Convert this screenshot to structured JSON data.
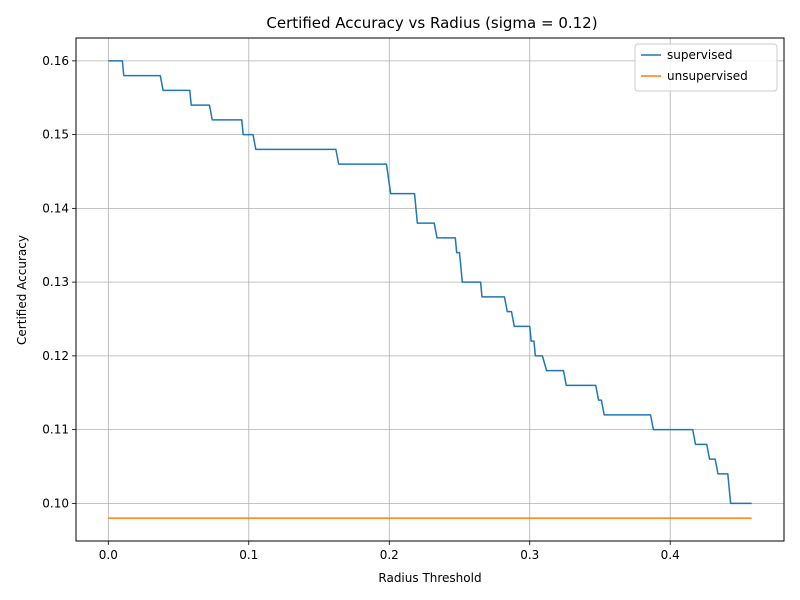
{
  "chart_data": {
    "type": "line",
    "title": "Certified Accuracy vs Radius (sigma = 0.12)",
    "xlabel": "Radius Threshold",
    "ylabel": "Certified Accuracy",
    "xlim": [
      -0.023,
      0.481
    ],
    "ylim": [
      0.0949,
      0.1631
    ],
    "xticks": [
      0.0,
      0.1,
      0.2,
      0.3,
      0.4
    ],
    "xtick_labels": [
      "0.0",
      "0.1",
      "0.2",
      "0.3",
      "0.4"
    ],
    "yticks": [
      0.1,
      0.11,
      0.12,
      0.13,
      0.14,
      0.15,
      0.16
    ],
    "ytick_labels": [
      "0.10",
      "0.11",
      "0.12",
      "0.13",
      "0.14",
      "0.15",
      "0.16"
    ],
    "grid": true,
    "legend_position": "top-right",
    "series": [
      {
        "name": "supervised",
        "color": "#1f77b4",
        "x": [
          0.0,
          0.01,
          0.011,
          0.037,
          0.039,
          0.058,
          0.059,
          0.072,
          0.074,
          0.095,
          0.096,
          0.103,
          0.105,
          0.162,
          0.164,
          0.198,
          0.201,
          0.218,
          0.22,
          0.232,
          0.234,
          0.247,
          0.248,
          0.25,
          0.252,
          0.265,
          0.266,
          0.282,
          0.284,
          0.287,
          0.289,
          0.3,
          0.301,
          0.303,
          0.304,
          0.309,
          0.312,
          0.324,
          0.326,
          0.347,
          0.349,
          0.351,
          0.353,
          0.386,
          0.388,
          0.416,
          0.418,
          0.426,
          0.428,
          0.432,
          0.434,
          0.441,
          0.443,
          0.458
        ],
        "y": [
          0.16,
          0.16,
          0.158,
          0.158,
          0.156,
          0.156,
          0.154,
          0.154,
          0.152,
          0.152,
          0.15,
          0.15,
          0.148,
          0.148,
          0.146,
          0.146,
          0.142,
          0.142,
          0.138,
          0.138,
          0.136,
          0.136,
          0.134,
          0.134,
          0.13,
          0.13,
          0.128,
          0.128,
          0.126,
          0.126,
          0.124,
          0.124,
          0.122,
          0.122,
          0.12,
          0.12,
          0.118,
          0.118,
          0.116,
          0.116,
          0.114,
          0.114,
          0.112,
          0.112,
          0.11,
          0.11,
          0.108,
          0.108,
          0.106,
          0.106,
          0.104,
          0.104,
          0.1,
          0.1
        ]
      },
      {
        "name": "unsupervised",
        "color": "#ff7f0e",
        "x": [
          0.0,
          0.458
        ],
        "y": [
          0.098,
          0.098
        ]
      }
    ]
  }
}
